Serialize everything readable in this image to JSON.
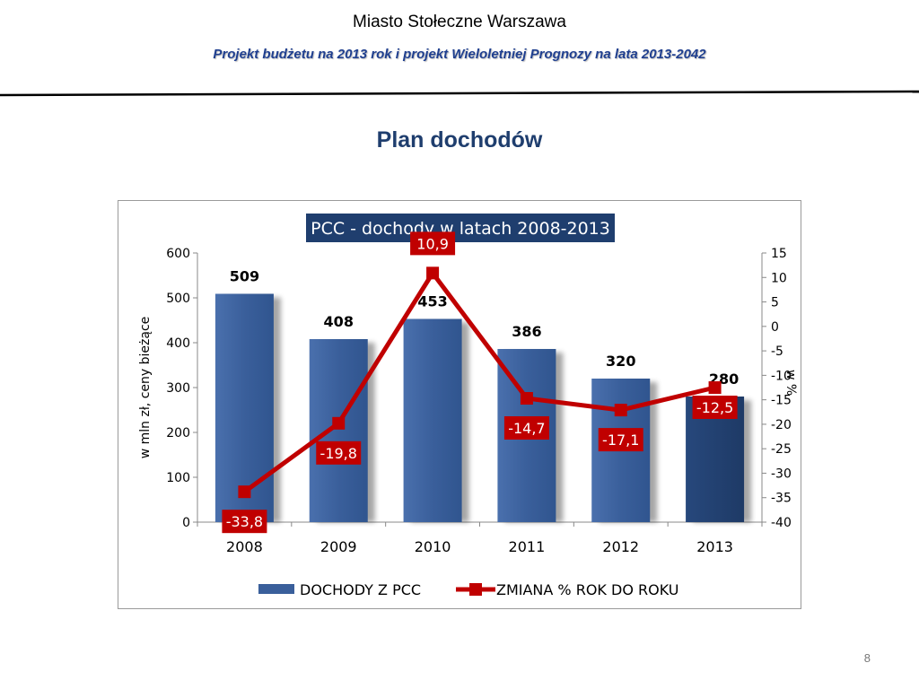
{
  "header": {
    "organization": "Miasto Stołeczne Warszawa",
    "subtitle": "Projekt budżetu na 2013 rok i projekt Wieloletniej Prognozy na lata 2013-2042"
  },
  "slide_title": "Plan dochodów",
  "page_number": "8",
  "colors": {
    "bar": "#3a5f9b",
    "bar_highlight": "#1e3a66",
    "line": "#c00000",
    "title_bg": "#1f3e6e",
    "subtitle_text": "#1f3f8f",
    "slide_title_text": "#1f3e6e"
  },
  "chart_data": {
    "type": "bar",
    "title": "PCC - dochody w latach 2008-2013",
    "categories": [
      "2008",
      "2009",
      "2010",
      "2011",
      "2012",
      "2013"
    ],
    "series": [
      {
        "name": "DOCHODY Z PCC",
        "type": "bar",
        "axis": "left",
        "values": [
          509,
          408,
          453,
          386,
          320,
          280
        ],
        "data_labels": [
          "509",
          "408",
          "453",
          "386",
          "320",
          "280"
        ],
        "highlight_last": true
      },
      {
        "name": "ZMIANA % ROK DO ROKU",
        "type": "line",
        "axis": "right",
        "values": [
          -33.8,
          -19.8,
          10.9,
          -14.7,
          -17.1,
          -12.5
        ],
        "data_labels": [
          "-33,8",
          "-19,8",
          "10,9",
          "-14,7",
          "-17,1",
          "-12,5"
        ]
      }
    ],
    "ylabel": "w mln zł, ceny bieżące",
    "ylim": [
      0,
      600
    ],
    "yticks": [
      0,
      100,
      200,
      300,
      400,
      500,
      600
    ],
    "y2label": "w %",
    "y2lim": [
      -40,
      15
    ],
    "y2ticks": [
      15,
      10,
      5,
      0,
      -5,
      -10,
      -15,
      -20,
      -25,
      -30,
      -35,
      -40
    ],
    "grid": false,
    "legend": "bottom"
  }
}
